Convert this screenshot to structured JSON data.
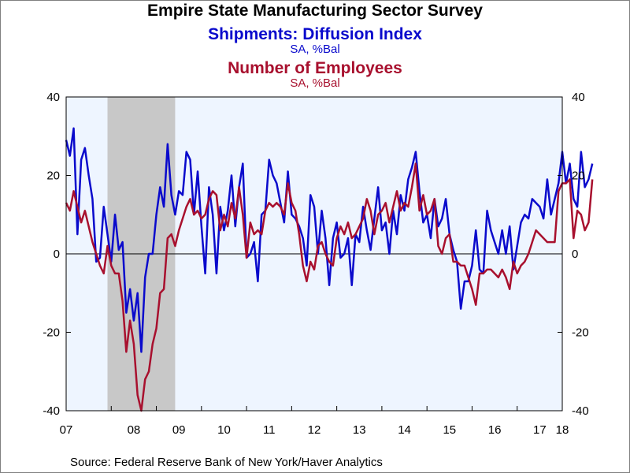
{
  "chart_data": {
    "type": "line",
    "title": "Empire State Manufacturing Sector Survey",
    "xlabel": "",
    "ylabel": "",
    "x_tick_labels": [
      "07",
      "08",
      "09",
      "10",
      "11",
      "12",
      "13",
      "14",
      "15",
      "16",
      "17",
      "18"
    ],
    "x_start": "2007-01",
    "frequency": "monthly",
    "ylim": [
      -40,
      40
    ],
    "y_ticks": [
      40,
      20,
      0,
      -20,
      -40
    ],
    "y_ticks_right": [
      40,
      20,
      0,
      -20,
      -40
    ],
    "recession_shading": {
      "start": "2007-12",
      "end": "2009-06"
    },
    "zero_line": true,
    "grid": false,
    "series": [
      {
        "name": "Shipments: Diffusion Index",
        "units": "SA, %Bal",
        "color": "#0a0acc",
        "values": [
          29,
          25,
          32,
          5,
          24,
          27,
          20,
          14,
          -2,
          -1,
          12,
          5,
          -2,
          10,
          1,
          3,
          -15,
          -9,
          -17,
          -10,
          -25,
          -6,
          0,
          0,
          10,
          17,
          12,
          28,
          15,
          10,
          16,
          15,
          26,
          24,
          10,
          21,
          7,
          -5,
          17,
          10,
          -5,
          12,
          6,
          11,
          20,
          7,
          17,
          23,
          -1,
          0,
          3,
          -7,
          10,
          11,
          24,
          20,
          18,
          13,
          8,
          21,
          10,
          9,
          7,
          4,
          -3,
          15,
          12,
          0,
          11,
          4,
          -8,
          4,
          8,
          -1,
          0,
          4,
          -8,
          5,
          3,
          12,
          6,
          1,
          9,
          17,
          6,
          8,
          0,
          11,
          5,
          15,
          11,
          19,
          22,
          26,
          16,
          8,
          10,
          4,
          14,
          7,
          9,
          14,
          5,
          1,
          -2,
          -14,
          -7,
          -7,
          -3,
          6,
          -4,
          -5,
          11,
          6,
          3,
          0,
          6,
          0,
          7,
          -4,
          2,
          8,
          10,
          9,
          14,
          13,
          12,
          9,
          19,
          10,
          14,
          18,
          26,
          18,
          23,
          14,
          12,
          26,
          17,
          19,
          23
        ]
      },
      {
        "name": "Number of Employees",
        "units": "SA, %Bal",
        "color": "#a8102e",
        "values": [
          13,
          11,
          16,
          12,
          8,
          11,
          7,
          3,
          0,
          -3,
          -5,
          2,
          -3,
          -5,
          -5,
          -12,
          -25,
          -17,
          -23,
          -36,
          -40,
          -32,
          -30,
          -23,
          -19,
          -10,
          -9,
          4,
          5,
          2,
          6,
          9,
          12,
          14,
          10,
          11,
          9,
          10,
          14,
          16,
          15,
          6,
          10,
          7,
          13,
          9,
          17,
          10,
          -1,
          8,
          5,
          6,
          5,
          11,
          13,
          12,
          13,
          12,
          10,
          18,
          13,
          11,
          5,
          -3,
          -7,
          -2,
          -4,
          2,
          3,
          0,
          -2,
          -3,
          4,
          7,
          5,
          8,
          4,
          5,
          7,
          9,
          14,
          11,
          5,
          10,
          11,
          13,
          8,
          12,
          16,
          11,
          13,
          12,
          17,
          23,
          11,
          15,
          10,
          11,
          14,
          2,
          0,
          4,
          5,
          -2,
          -2,
          -3,
          -3,
          -6,
          -9,
          -13,
          -5,
          -5,
          -4,
          -4,
          -5,
          -6,
          -4,
          -6,
          -9,
          -2,
          -5,
          -3,
          -2,
          0,
          3,
          6,
          5,
          4,
          3,
          3,
          3,
          16,
          18,
          18,
          19,
          4,
          11,
          10,
          6,
          8,
          19
        ]
      }
    ]
  },
  "source": "Source:  Federal Reserve Bank of New York/Haver Analytics"
}
